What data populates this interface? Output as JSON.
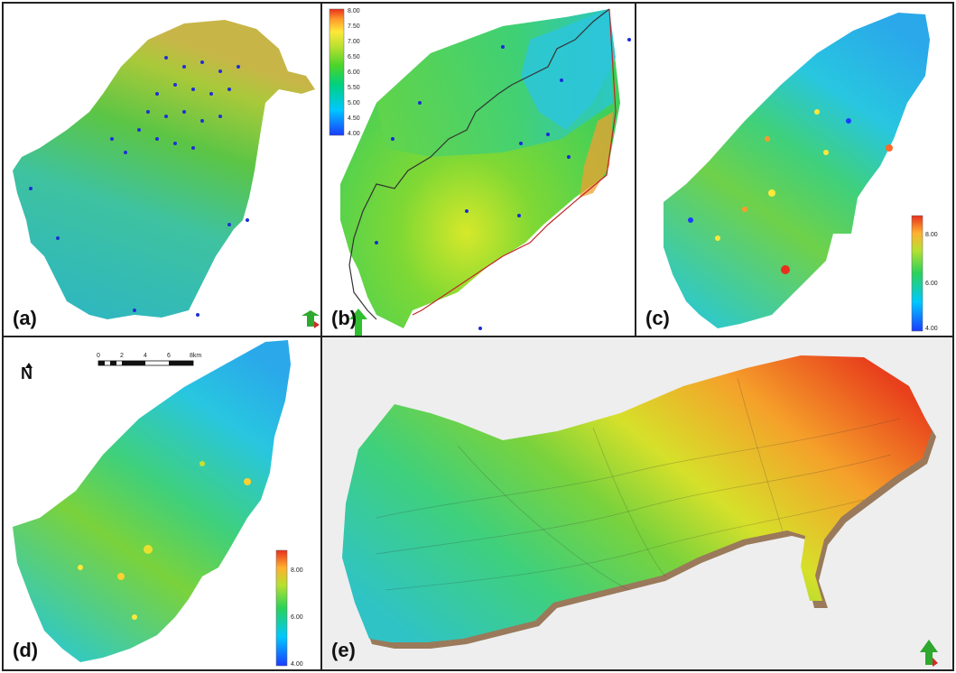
{
  "panels": [
    {
      "id": "a",
      "label": "(a)"
    },
    {
      "id": "b",
      "label": "(b)"
    },
    {
      "id": "c",
      "label": "(c)"
    },
    {
      "id": "d",
      "label": "(d)"
    },
    {
      "id": "e",
      "label": "(e)"
    }
  ],
  "legend_b": {
    "ticks": [
      "8.00",
      "7.50",
      "7.00",
      "6.50",
      "6.00",
      "5.50",
      "5.00",
      "4.50",
      "4.00"
    ]
  },
  "legend_c": {
    "ticks": [
      "8.00",
      "6.00",
      "4.00"
    ]
  },
  "legend_d": {
    "ticks": [
      "8.00",
      "6.00",
      "4.00"
    ]
  },
  "north_arrow": "N",
  "scalebar": {
    "ticks": [
      "0",
      "2",
      "4",
      "6",
      "8km"
    ]
  },
  "colors": {
    "panel_border": "#222222",
    "ramp": [
      "#1a3cff",
      "#00c8ff",
      "#00d080",
      "#4ad42a",
      "#b8e030",
      "#ffe83a",
      "#ff9a2a",
      "#e8301c"
    ],
    "outline_red": "#c0262a",
    "well_marker": "#1a2ad8"
  },
  "icons": [
    "north-arrow-icon",
    "orientation-arrow-icon"
  ]
}
